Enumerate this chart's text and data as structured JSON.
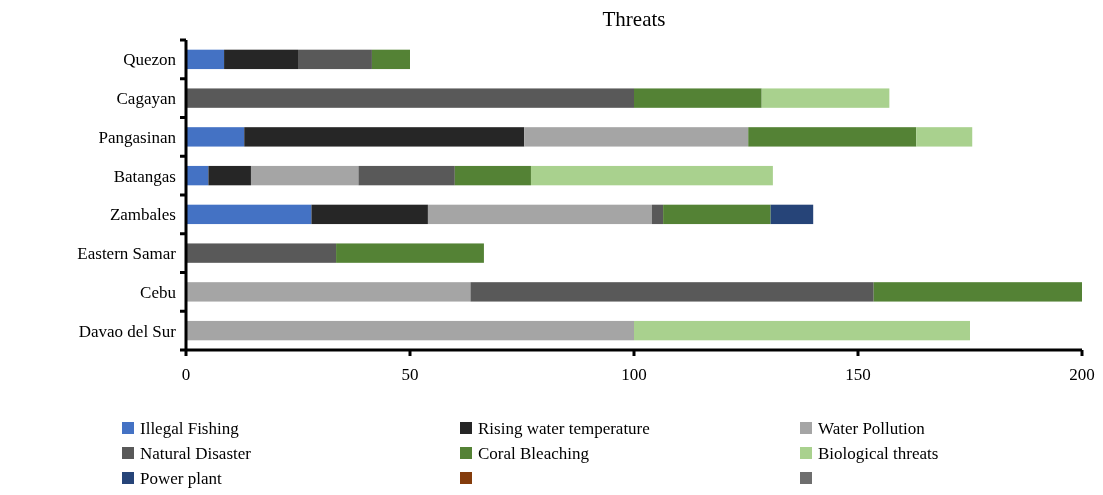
{
  "chart_data": {
    "type": "bar",
    "title": "Threats",
    "orientation": "horizontal",
    "stacked": true,
    "legend": "bottom",
    "grid": false,
    "categories": [
      "Quezon",
      "Cagayan",
      "Pangasinan",
      "Batangas",
      "Zambales",
      "Eastern Samar",
      "Cebu",
      "Davao del Sur"
    ],
    "xlim": [
      0,
      200
    ],
    "xticks": [
      0,
      50,
      100,
      150,
      200
    ],
    "series": [
      {
        "name": "Illegal Fishing",
        "color": "#4472c4",
        "values": [
          8.5,
          null,
          13,
          5,
          28,
          null,
          null,
          null
        ]
      },
      {
        "name": "Rising water  temperature",
        "color": "#262626",
        "values": [
          16.5,
          null,
          62.5,
          9.5,
          26,
          null,
          null,
          null
        ]
      },
      {
        "name": "Water Pollution",
        "color": "#a5a5a5",
        "values": [
          null,
          null,
          50,
          24,
          50,
          null,
          63.5,
          100
        ]
      },
      {
        "name": "Natural Disaster",
        "color": "#595959",
        "values": [
          16.5,
          100,
          null,
          21.5,
          2.5,
          33.5,
          90,
          null
        ]
      },
      {
        "name": "Coral Bleaching",
        "color": "#548235",
        "values": [
          8.5,
          28.5,
          37.5,
          17,
          24,
          33,
          46.5,
          null
        ]
      },
      {
        "name": "Biological threats",
        "color": "#a9d18e",
        "values": [
          null,
          28.5,
          12.5,
          54,
          null,
          null,
          null,
          75
        ]
      },
      {
        "name": "Power plant",
        "color": "#264478",
        "values": [
          null,
          null,
          null,
          null,
          9.5,
          null,
          null,
          null
        ]
      },
      {
        "color": "#843c0c",
        "values": [
          null,
          null,
          null,
          null,
          null,
          null,
          null,
          null
        ]
      },
      {
        "color": "#6e6e6e",
        "values": [
          null,
          null,
          null,
          null,
          null,
          null,
          null,
          null
        ]
      }
    ]
  }
}
